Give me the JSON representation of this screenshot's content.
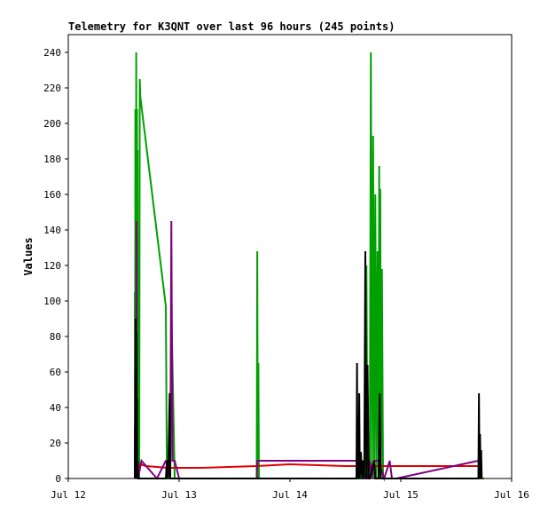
{
  "chart_data": {
    "type": "line",
    "title": "Telemetry for K3QNT over last 96 hours (245 points)",
    "xlabel": "",
    "ylabel": "Values",
    "xlim": [
      "Jul 12",
      "Jul 16"
    ],
    "ylim": [
      0,
      250
    ],
    "x_ticks": [
      "Jul 12",
      "Jul 13",
      "Jul 14",
      "Jul 15",
      "Jul 16"
    ],
    "y_ticks": [
      0,
      20,
      40,
      60,
      80,
      100,
      120,
      140,
      160,
      180,
      200,
      220,
      240
    ],
    "grid": false,
    "legend": "none",
    "series": [
      {
        "color": "#00a000",
        "points": [
          [
            0.6,
            0
          ],
          [
            0.6,
            105
          ],
          [
            0.603,
            0
          ],
          [
            0.605,
            208
          ],
          [
            0.61,
            0
          ],
          [
            0.613,
            240
          ],
          [
            0.617,
            0
          ],
          [
            0.62,
            208
          ],
          [
            0.623,
            0
          ],
          [
            0.625,
            185
          ],
          [
            0.63,
            0
          ],
          [
            0.64,
            0
          ],
          [
            0.645,
            225
          ],
          [
            0.65,
            215
          ],
          [
            0.88,
            97
          ],
          [
            0.89,
            0
          ],
          [
            0.92,
            0
          ],
          [
            0.93,
            97
          ],
          [
            0.96,
            0
          ],
          [
            1.7,
            0
          ],
          [
            1.705,
            128
          ],
          [
            1.71,
            0
          ],
          [
            1.715,
            65
          ],
          [
            1.72,
            0
          ],
          [
            2.65,
            0
          ],
          [
            2.68,
            0
          ],
          [
            2.69,
            120
          ],
          [
            2.7,
            0
          ],
          [
            2.72,
            0
          ],
          [
            2.73,
            240
          ],
          [
            2.74,
            0
          ],
          [
            2.75,
            193
          ],
          [
            2.76,
            0
          ],
          [
            2.77,
            160
          ],
          [
            2.78,
            0
          ],
          [
            2.79,
            128
          ],
          [
            2.8,
            0
          ],
          [
            2.805,
            176
          ],
          [
            2.81,
            0
          ],
          [
            2.815,
            163
          ],
          [
            2.82,
            0
          ],
          [
            2.83,
            118
          ],
          [
            2.84,
            0
          ],
          [
            2.85,
            0
          ],
          [
            3.75,
            0
          ]
        ]
      },
      {
        "color": "#e00000",
        "points": [
          [
            0.6,
            2
          ],
          [
            0.65,
            8
          ],
          [
            0.7,
            7
          ],
          [
            0.9,
            6
          ],
          [
            1.2,
            6
          ],
          [
            1.7,
            7
          ],
          [
            2.0,
            8
          ],
          [
            2.5,
            7
          ],
          [
            2.7,
            7
          ],
          [
            3.0,
            7
          ],
          [
            3.7,
            7
          ]
        ]
      },
      {
        "color": "#800080",
        "points": [
          [
            0.6,
            0
          ],
          [
            0.605,
            60
          ],
          [
            0.61,
            5
          ],
          [
            0.615,
            145
          ],
          [
            0.62,
            10
          ],
          [
            0.63,
            0
          ],
          [
            0.66,
            10
          ],
          [
            0.8,
            0
          ],
          [
            0.88,
            10
          ],
          [
            0.9,
            10
          ],
          [
            0.92,
            0
          ],
          [
            0.93,
            145
          ],
          [
            0.94,
            10
          ],
          [
            0.96,
            10
          ],
          [
            1.0,
            0
          ],
          [
            1.7,
            0
          ],
          [
            1.705,
            10
          ],
          [
            1.71,
            10
          ],
          [
            2.65,
            10
          ],
          [
            2.67,
            0
          ],
          [
            2.7,
            0
          ],
          [
            2.72,
            10
          ],
          [
            2.74,
            0
          ],
          [
            2.76,
            10
          ],
          [
            2.8,
            10
          ],
          [
            2.85,
            0
          ],
          [
            2.9,
            10
          ],
          [
            2.92,
            0
          ],
          [
            2.96,
            0
          ],
          [
            3.7,
            10
          ]
        ]
      },
      {
        "color": "#000000",
        "points": [
          [
            0.6,
            0
          ],
          [
            0.603,
            30
          ],
          [
            0.605,
            0
          ],
          [
            0.608,
            90
          ],
          [
            0.611,
            0
          ],
          [
            0.614,
            82
          ],
          [
            0.617,
            0
          ],
          [
            0.62,
            45
          ],
          [
            0.623,
            0
          ],
          [
            0.626,
            10
          ],
          [
            0.629,
            0
          ],
          [
            0.64,
            0
          ],
          [
            0.88,
            0
          ],
          [
            0.89,
            10
          ],
          [
            0.9,
            0
          ],
          [
            0.915,
            48
          ],
          [
            0.92,
            0
          ],
          [
            2.6,
            0
          ],
          [
            2.605,
            65
          ],
          [
            2.61,
            0
          ],
          [
            2.615,
            32
          ],
          [
            2.62,
            0
          ],
          [
            2.625,
            48
          ],
          [
            2.63,
            0
          ],
          [
            2.64,
            15
          ],
          [
            2.65,
            0
          ],
          [
            2.66,
            10
          ],
          [
            2.67,
            0
          ],
          [
            2.68,
            128
          ],
          [
            2.69,
            0
          ],
          [
            2.7,
            64
          ],
          [
            2.71,
            0
          ],
          [
            2.72,
            0
          ],
          [
            2.76,
            10
          ],
          [
            2.77,
            0
          ],
          [
            2.8,
            0
          ],
          [
            2.81,
            48
          ],
          [
            2.82,
            0
          ],
          [
            2.83,
            0
          ],
          [
            3.7,
            0
          ],
          [
            3.705,
            48
          ],
          [
            3.71,
            0
          ],
          [
            3.715,
            25
          ],
          [
            3.72,
            0
          ],
          [
            3.725,
            16
          ],
          [
            3.73,
            0
          ]
        ]
      }
    ]
  }
}
